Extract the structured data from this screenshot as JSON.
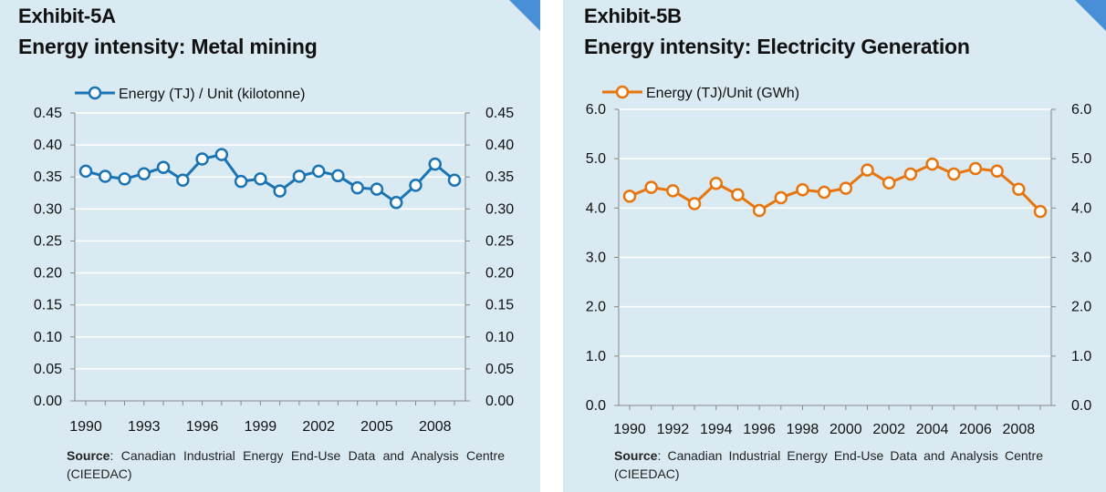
{
  "panels": [
    {
      "exhibit": "Exhibit-5A",
      "title": "Energy intensity: Metal mining",
      "source_label": "Source",
      "source_text": ": Canadian Industrial Energy End-Use Data and Analysis Centre (CIEEDAC)"
    },
    {
      "exhibit": "Exhibit-5B",
      "title": "Energy intensity: Electricity Generation",
      "source_label": "Source",
      "source_text": ": Canadian Industrial Energy End-Use Data and Analysis Centre (CIEEDAC)"
    }
  ],
  "colors": {
    "panel_bg": "#daeaf3",
    "corner": "#4a90d9",
    "series_a": "#1a74b4",
    "series_b": "#e8740c",
    "grid": "#ffffff",
    "axis": "#888888"
  },
  "chart_data": [
    {
      "type": "line",
      "title": "Energy intensity: Metal mining",
      "legend": "top-center",
      "grid": true,
      "ylim": [
        0,
        0.45
      ],
      "y_ticks": [
        "0.00",
        "0.05",
        "0.10",
        "0.15",
        "0.20",
        "0.25",
        "0.30",
        "0.35",
        "0.40",
        "0.45"
      ],
      "secondary_y_ticks": [
        "0.00",
        "0.05",
        "0.10",
        "0.15",
        "0.20",
        "0.25",
        "0.30",
        "0.35",
        "0.40",
        "0.45"
      ],
      "x_tick_labels": [
        "1990",
        "1993",
        "1996",
        "1999",
        "2002",
        "2005",
        "2008"
      ],
      "x_tick_years": [
        1990,
        1993,
        1996,
        1999,
        2002,
        2005,
        2008
      ],
      "x": [
        1990,
        1991,
        1992,
        1993,
        1994,
        1995,
        1996,
        1997,
        1998,
        1999,
        2000,
        2001,
        2002,
        2003,
        2004,
        2005,
        2006,
        2007,
        2008,
        2009
      ],
      "series": [
        {
          "name": "Energy (TJ) / Unit (kilotonne)",
          "color": "#1a74b4",
          "values": [
            0.359,
            0.351,
            0.347,
            0.355,
            0.365,
            0.345,
            0.378,
            0.385,
            0.343,
            0.347,
            0.328,
            0.351,
            0.359,
            0.352,
            0.333,
            0.331,
            0.31,
            0.337,
            0.37,
            0.345
          ]
        }
      ]
    },
    {
      "type": "line",
      "title": "Energy intensity: Electricity Generation",
      "legend": "top-center",
      "grid": true,
      "ylim": [
        0,
        6
      ],
      "y_ticks": [
        "0.0",
        "1.0",
        "2.0",
        "3.0",
        "4.0",
        "5.0",
        "6.0"
      ],
      "secondary_y_ticks": [
        "0.0",
        "1.0",
        "2.0",
        "3.0",
        "4.0",
        "5.0",
        "6.0"
      ],
      "x_tick_labels": [
        "1990",
        "1992",
        "1994",
        "1996",
        "1998",
        "2000",
        "2002",
        "2004",
        "2006",
        "2008"
      ],
      "x_tick_years": [
        1990,
        1992,
        1994,
        1996,
        1998,
        2000,
        2002,
        2004,
        2006,
        2008
      ],
      "x": [
        1990,
        1991,
        1992,
        1993,
        1994,
        1995,
        1996,
        1997,
        1998,
        1999,
        2000,
        2001,
        2002,
        2003,
        2004,
        2005,
        2006,
        2007,
        2008,
        2009
      ],
      "series": [
        {
          "name": "Energy (TJ)/Unit (GWh)",
          "color": "#e8740c",
          "values": [
            4.24,
            4.42,
            4.35,
            4.09,
            4.5,
            4.27,
            3.95,
            4.21,
            4.37,
            4.32,
            4.4,
            4.77,
            4.51,
            4.69,
            4.89,
            4.69,
            4.8,
            4.75,
            4.38,
            3.93
          ]
        }
      ]
    }
  ]
}
